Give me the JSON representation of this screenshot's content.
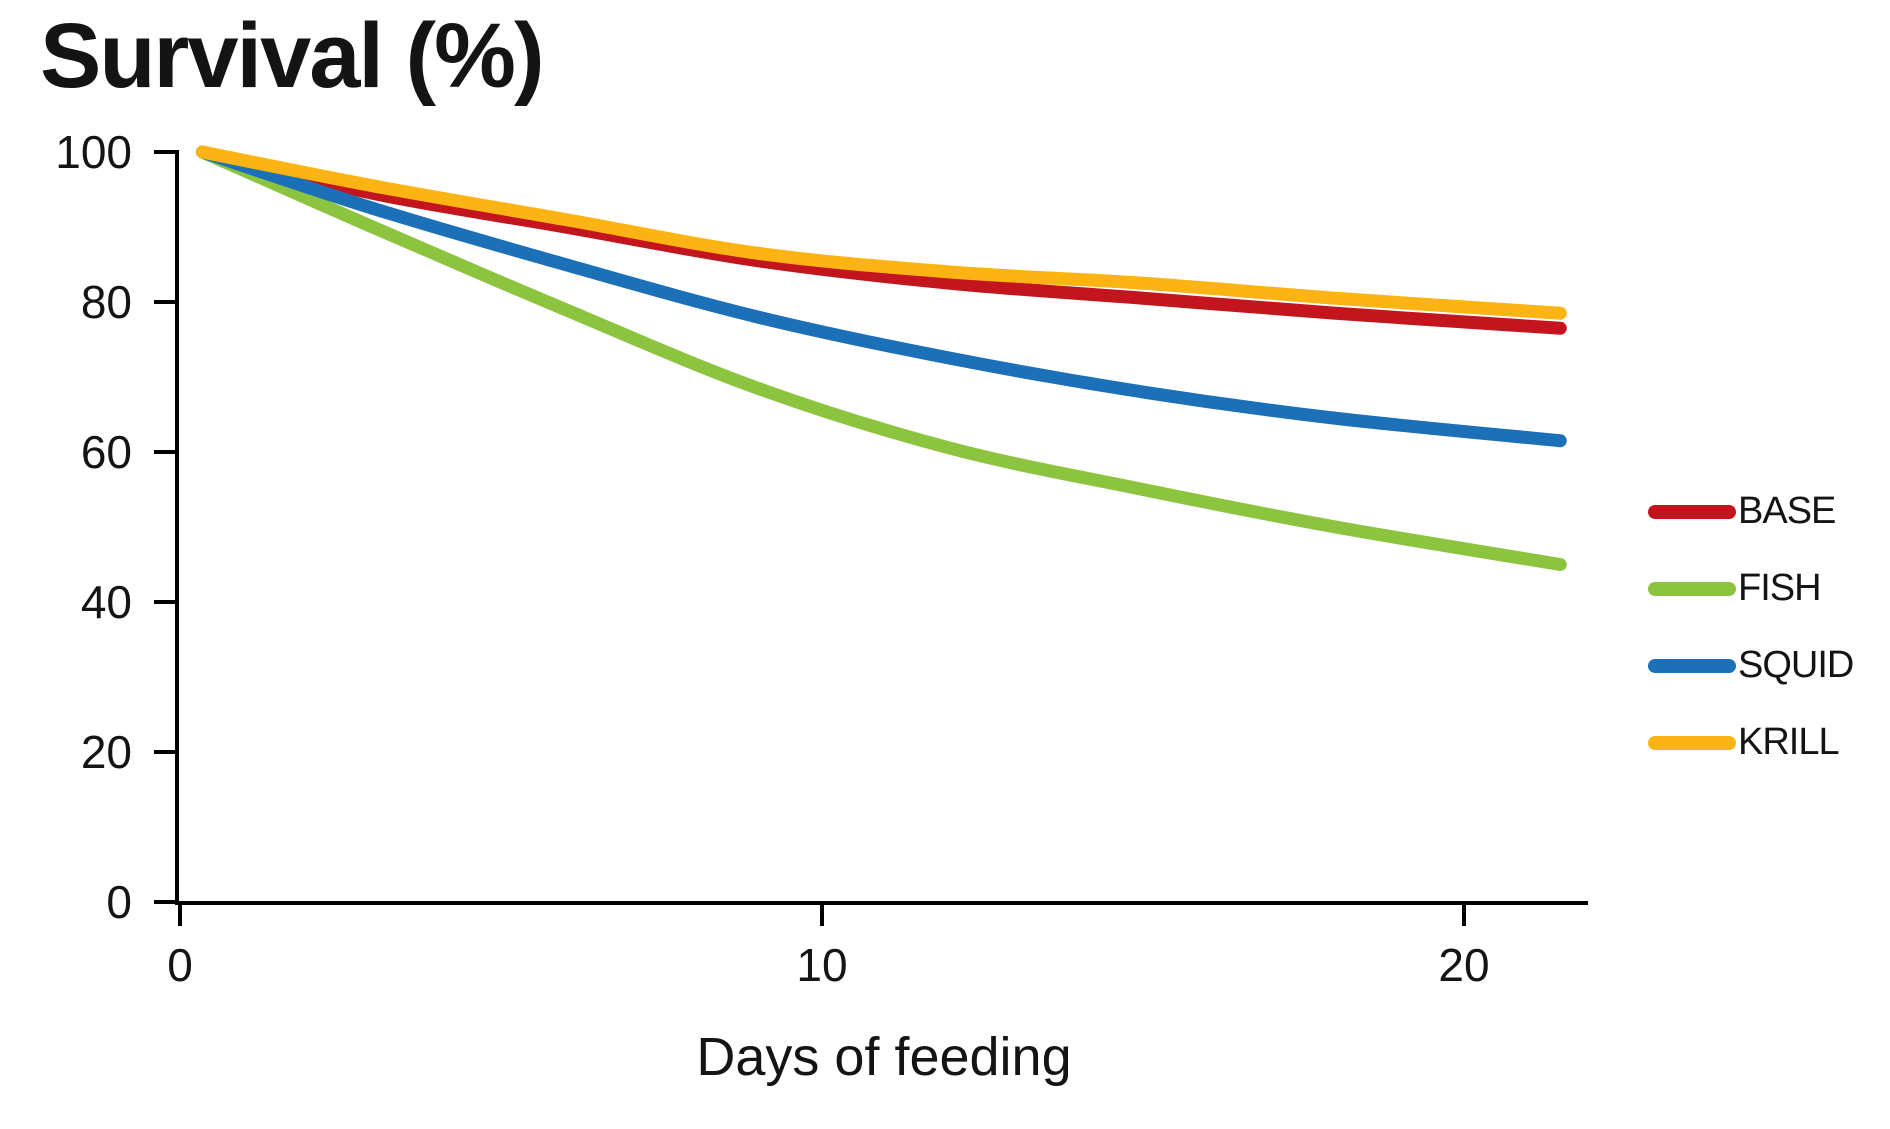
{
  "page": {
    "background": "#ffffff",
    "text_color": "#141414",
    "axis_color": "#000000"
  },
  "chart_data": {
    "type": "line",
    "title": "Survival (%)",
    "xlabel": "Days of feeding",
    "ylabel": "Survival (%)",
    "xlim": [
      0,
      21.5
    ],
    "ylim": [
      0,
      100
    ],
    "x_ticks": [
      0,
      10,
      20
    ],
    "y_ticks": [
      100,
      80,
      60,
      40,
      20,
      0
    ],
    "grid": false,
    "legend_position": "right",
    "x": [
      0,
      3,
      6,
      9,
      12,
      15,
      18,
      21.5
    ],
    "series": [
      {
        "name": "BASE",
        "color": "#C2151D",
        "values": [
          100,
          94.5,
          90,
          85.5,
          82.5,
          80.5,
          78.5,
          76.5
        ]
      },
      {
        "name": "FISH",
        "color": "#8CC440",
        "values": [
          100,
          90,
          79,
          68.5,
          60.5,
          55,
          50,
          45
        ]
      },
      {
        "name": "SQUID",
        "color": "#1C70B8",
        "values": [
          100,
          92.5,
          85,
          78,
          72.5,
          68,
          64.5,
          61.5
        ]
      },
      {
        "name": "KRILL",
        "color": "#FBB414",
        "values": [
          100,
          95.5,
          91,
          86.5,
          84,
          82.5,
          80.5,
          78.5
        ]
      }
    ]
  }
}
